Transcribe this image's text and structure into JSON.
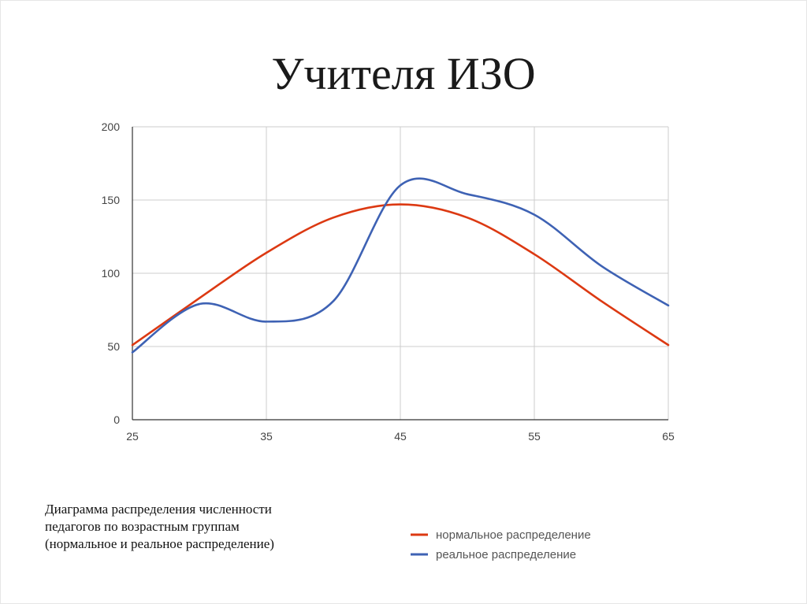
{
  "slide": {
    "title": "Учителя ИЗО",
    "caption": [
      "Диаграмма распределения численности",
      "педагогов по возрастным группам",
      "(нормальное и реальное распределение)"
    ]
  },
  "chart_data": {
    "type": "line",
    "title": "Учителя ИЗО",
    "x": [
      25,
      30,
      35,
      40,
      45,
      50,
      55,
      60,
      65
    ],
    "xlim": [
      25,
      65
    ],
    "ylim": [
      0,
      200
    ],
    "xticks": [
      25,
      35,
      45,
      55,
      65
    ],
    "yticks": [
      0,
      50,
      100,
      150,
      200
    ],
    "grid": true,
    "legend_position": "bottom-right",
    "series": [
      {
        "name": "нормальное распределение",
        "color": "#dc3912",
        "values": [
          51,
          83,
          114,
          138,
          147,
          138,
          113,
          81,
          51
        ]
      },
      {
        "name": "реальное распределение",
        "color": "#3e62b4",
        "values": [
          46,
          79,
          67,
          81,
          160,
          154,
          140,
          105,
          78
        ]
      }
    ]
  }
}
